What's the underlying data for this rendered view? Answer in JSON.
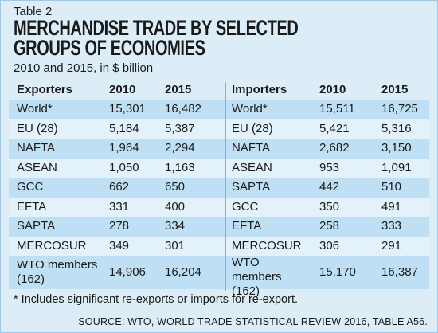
{
  "label": "Table 2",
  "title": "MERCHANDISE TRADE BY SELECTED GROUPS OF ECONOMIES",
  "subtitle": "2010 and 2015, in $ billion",
  "table": {
    "header": [
      "Exporters",
      "2010",
      "2015",
      "Importers",
      "2010",
      "2015"
    ],
    "rows": [
      [
        "World*",
        "15,301",
        "16,482",
        "World*",
        "15,511",
        "16,725"
      ],
      [
        "EU (28)",
        "5,184",
        "5,387",
        "EU (28)",
        "5,421",
        "5,316"
      ],
      [
        "NAFTA",
        "1,964",
        "2,294",
        "NAFTA",
        "2,682",
        "3,150"
      ],
      [
        "ASEAN",
        "1,050",
        "1,163",
        "ASEAN",
        "953",
        "1,091"
      ],
      [
        "GCC",
        "662",
        "650",
        "SAPTA",
        "442",
        "510"
      ],
      [
        "EFTA",
        "331",
        "400",
        "GCC",
        "350",
        "491"
      ],
      [
        "SAPTA",
        "278",
        "334",
        "EFTA",
        "258",
        "333"
      ],
      [
        "MERCOSUR",
        "349",
        "301",
        "MERCOSUR",
        "306",
        "291"
      ],
      [
        "WTO members (162)",
        "14,906",
        "16,204",
        "WTO members (162)",
        "15,170",
        "16,387"
      ]
    ]
  },
  "footnote": "* Includes significant re-exports or imports for re-export.",
  "source": "SOURCE: WTO, WORLD TRADE STATISTICAL REVIEW 2016, TABLE A56."
}
